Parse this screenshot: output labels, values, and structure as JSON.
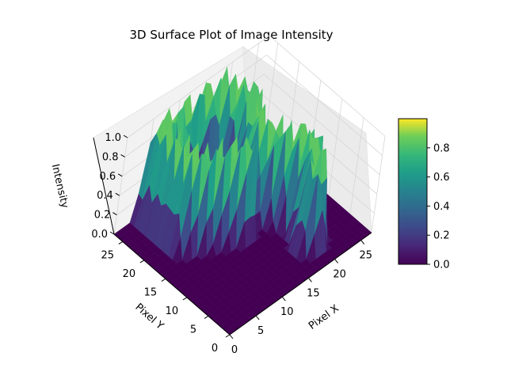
{
  "chart_data": {
    "type": "surface3d",
    "title": "3D Surface Plot of Image Intensity",
    "xlabel": "Pixel X",
    "ylabel": "Pixel Y",
    "zlabel": "Intensity",
    "xlim": [
      0,
      27
    ],
    "ylim": [
      0,
      27
    ],
    "zlim": [
      0,
      1
    ],
    "x_ticks": [
      "0",
      "5",
      "10",
      "15",
      "20",
      "25"
    ],
    "y_ticks": [
      "0",
      "5",
      "10",
      "15",
      "20",
      "25"
    ],
    "z_ticks": [
      "0.0",
      "0.2",
      "0.4",
      "0.6",
      "0.8",
      "1.0"
    ],
    "colormap": "viridis",
    "colorbar": {
      "min": 0,
      "max": 1,
      "ticks": [
        "0.0",
        "0.2",
        "0.4",
        "0.6",
        "0.8"
      ]
    },
    "grid": true,
    "surface_shape": "digit-like bright stroke (values 0 to ~1) on a zero background",
    "colors": {
      "low": "#440154",
      "mid": "#21918c",
      "high": "#fde725",
      "pane": "#f2f2f2",
      "grid": "#d6d6d6"
    }
  }
}
